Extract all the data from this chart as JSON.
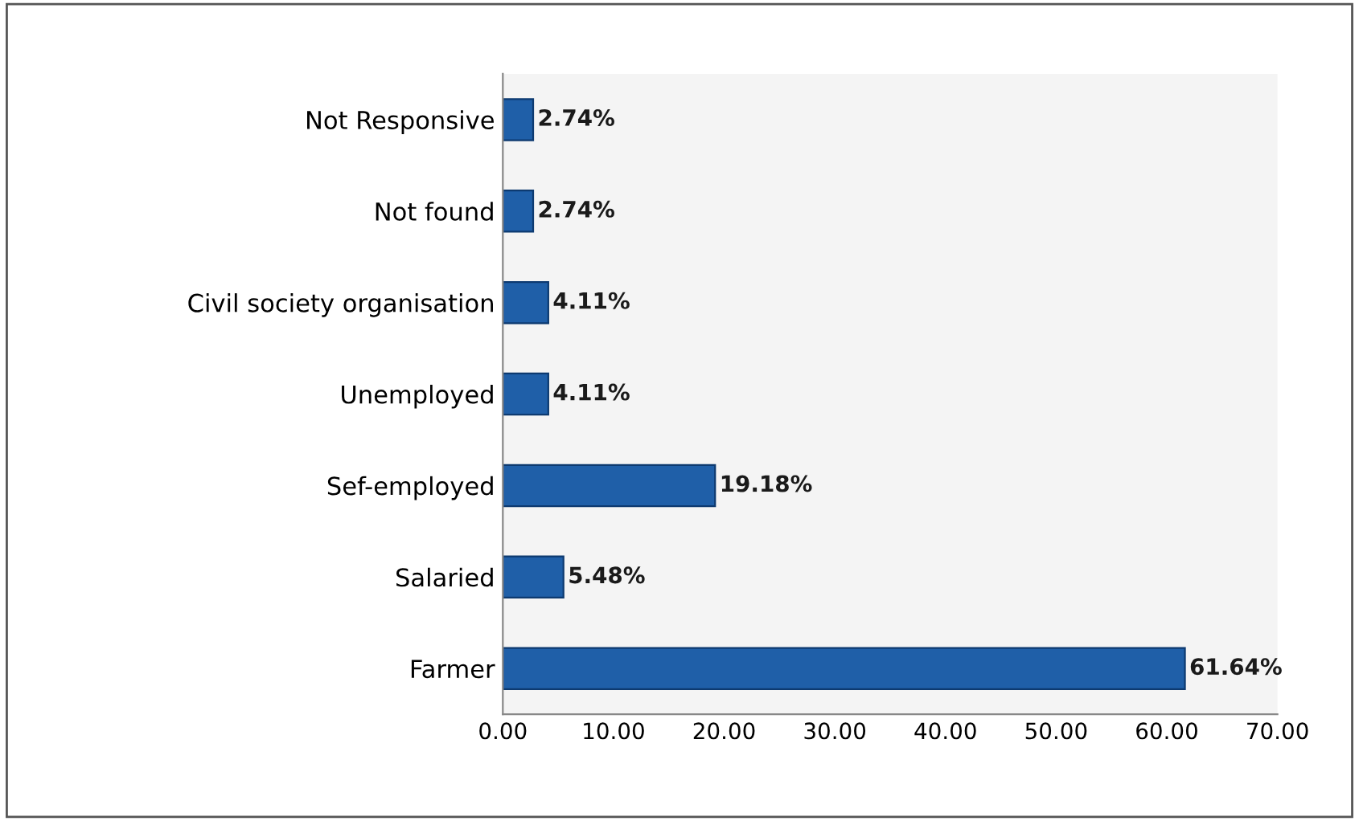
{
  "chart_data": {
    "type": "bar",
    "orientation": "horizontal",
    "categories": [
      "Not Responsive",
      "Not found",
      "Civil society organisation",
      "Unemployed",
      "Sef-employed",
      "Salaried",
      "Farmer"
    ],
    "values": [
      2.74,
      2.74,
      4.11,
      4.11,
      19.18,
      5.48,
      61.64
    ],
    "value_labels": [
      "2.74%",
      "2.74%",
      "4.11%",
      "4.11%",
      "19.18%",
      "5.48%",
      "61.64%"
    ],
    "color": "#1f5fa8",
    "xlim": [
      0,
      70
    ],
    "xticks": [
      {
        "value": 0,
        "label": "0.00"
      },
      {
        "value": 10,
        "label": "10.00"
      },
      {
        "value": 20,
        "label": "20.00"
      },
      {
        "value": 30,
        "label": "30.00"
      },
      {
        "value": 40,
        "label": "40.00"
      },
      {
        "value": 50,
        "label": "50.00"
      },
      {
        "value": 60,
        "label": "60.00"
      },
      {
        "value": 70,
        "label": "70.00"
      }
    ],
    "grid": false,
    "legend": false
  }
}
